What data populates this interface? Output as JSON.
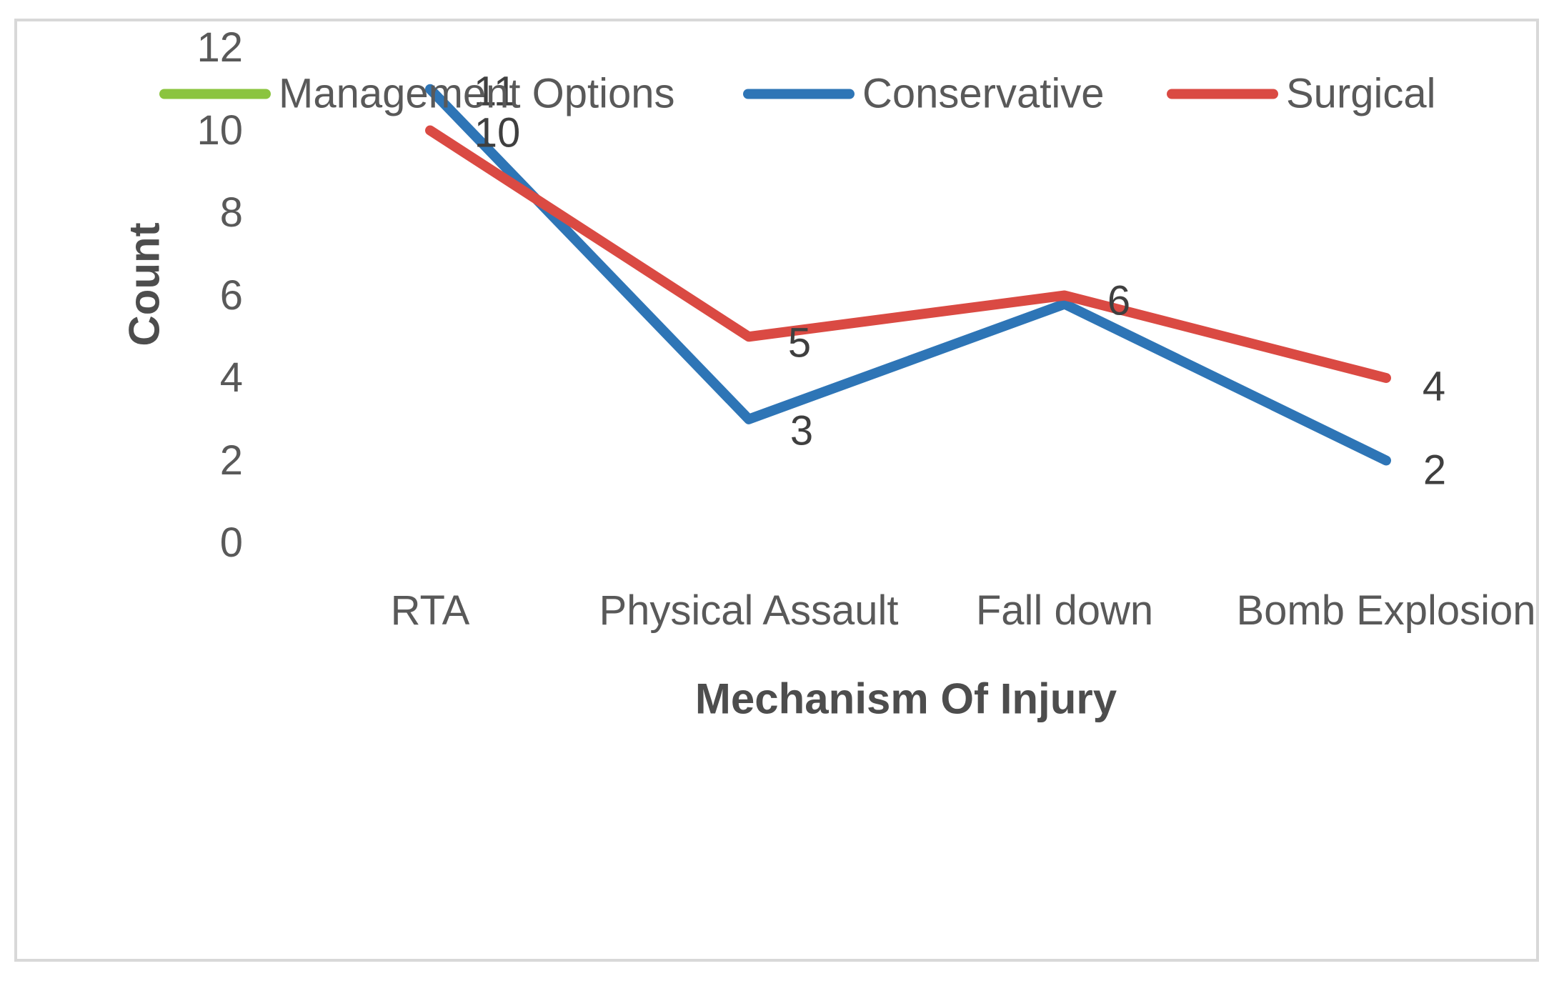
{
  "chart_data": {
    "type": "line",
    "categories": [
      "RTA",
      "Physical Assault",
      "Fall down",
      "Bomb Explosion"
    ],
    "series": [
      {
        "name": "Management Options",
        "color": "#8bc43f",
        "values": null
      },
      {
        "name": "Conservative",
        "color": "#2e75b6",
        "values": [
          11,
          3,
          6,
          2
        ]
      },
      {
        "name": "Surgical",
        "color": "#da4a43",
        "values": [
          10,
          5,
          6,
          4
        ]
      }
    ],
    "xlabel": "Mechanism Of Injury",
    "ylabel": "Count",
    "yticks": [
      12,
      10,
      8,
      6,
      4,
      2,
      0
    ],
    "ylim": [
      0,
      12
    ],
    "grid": false,
    "axis_lines": false,
    "legend_position": "top",
    "data_labels_shown": [
      "11",
      "10",
      "5",
      "3",
      "6",
      "4",
      "2"
    ]
  },
  "frame": {
    "border_color": "#d8d8d8",
    "background": "#ffffff"
  },
  "text_colors": {
    "axis_text": "#595959",
    "data_label_text": "#3f3f3f"
  }
}
